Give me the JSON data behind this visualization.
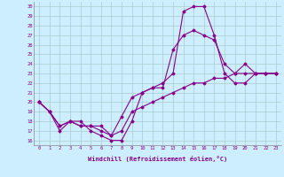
{
  "xlabel": "Windchill (Refroidissement éolien,°C)",
  "ylabel": "",
  "bg_color": "#cceeff",
  "grid_color": "#aacccc",
  "line_color": "#880088",
  "x_ticks": [
    0,
    1,
    2,
    3,
    4,
    5,
    6,
    7,
    8,
    9,
    10,
    11,
    12,
    13,
    14,
    15,
    16,
    17,
    18,
    19,
    20,
    21,
    22,
    23
  ],
  "y_ticks": [
    16,
    17,
    18,
    19,
    20,
    21,
    22,
    23,
    24,
    25,
    26,
    27,
    28,
    29,
    30
  ],
  "xlim": [
    -0.5,
    23.5
  ],
  "ylim": [
    15.5,
    30.5
  ],
  "line1_x": [
    0,
    1,
    2,
    3,
    4,
    5,
    6,
    7,
    8,
    9,
    10,
    11,
    12,
    13,
    14,
    15,
    16,
    17,
    18,
    19,
    20,
    21,
    22,
    23
  ],
  "line1_y": [
    20,
    19,
    17,
    18,
    18,
    17,
    16.5,
    16,
    16,
    18,
    21,
    21.5,
    22,
    23,
    29.5,
    30,
    30,
    27,
    23,
    22,
    22,
    23,
    23,
    23
  ],
  "line2_x": [
    0,
    1,
    2,
    3,
    4,
    5,
    6,
    7,
    8,
    9,
    10,
    11,
    12,
    13,
    14,
    15,
    16,
    17,
    18,
    19,
    20,
    21,
    22,
    23
  ],
  "line2_y": [
    20,
    19,
    17.5,
    18,
    17.5,
    17.5,
    17,
    16.5,
    18.5,
    20.5,
    21,
    21.5,
    21.5,
    25.5,
    27,
    27.5,
    27,
    26.5,
    24,
    23,
    23,
    23,
    23,
    23
  ],
  "line3_x": [
    0,
    1,
    2,
    3,
    4,
    5,
    6,
    7,
    8,
    9,
    10,
    11,
    12,
    13,
    14,
    15,
    16,
    17,
    18,
    19,
    20,
    21,
    22,
    23
  ],
  "line3_y": [
    20,
    19,
    17.5,
    18,
    17.5,
    17.5,
    17.5,
    16.5,
    17,
    19,
    19.5,
    20,
    20.5,
    21,
    21.5,
    22,
    22,
    22.5,
    22.5,
    23,
    24,
    23,
    23,
    23
  ]
}
